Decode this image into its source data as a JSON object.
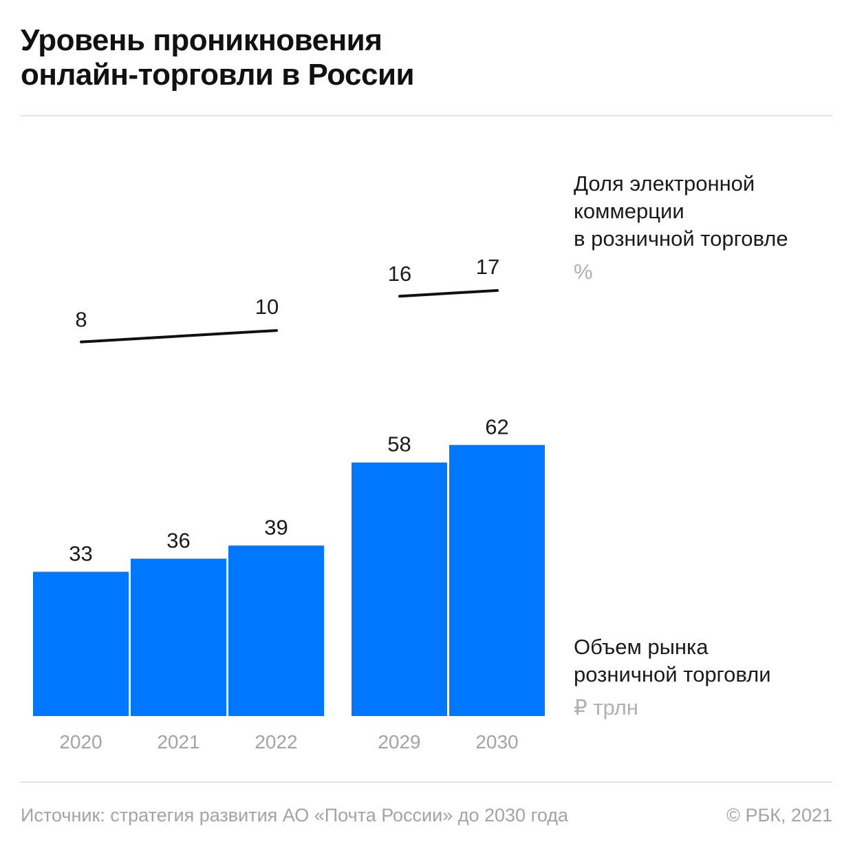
{
  "title": {
    "line1": "Уровень проникновения",
    "line2": "онлайн-торговли в России"
  },
  "legend": {
    "line_series": {
      "label_lines": [
        "Доля электронной",
        "коммерции",
        "в розничной торговле"
      ],
      "unit": "%"
    },
    "bar_series": {
      "label_lines": [
        "Объем рынка",
        "розничной торговли"
      ],
      "unit": "₽ трлн"
    }
  },
  "footer": {
    "source": "Источник: стратегия развития АО «Почта России» до 2030 года",
    "copyright": "© РБК, 2021"
  },
  "colors": {
    "bar": "#0077ff",
    "line": "#111111",
    "value_label": "#1a1a1a",
    "tick_label": "#a3a3a3",
    "rule": "#e2e2e2"
  },
  "chart_data": {
    "type": "bar",
    "title": "Уровень проникновения онлайн-торговли в России",
    "categories": [
      "2020",
      "2021",
      "2022",
      "2029",
      "2030"
    ],
    "groups": [
      [
        "2020",
        "2021",
        "2022"
      ],
      [
        "2029",
        "2030"
      ]
    ],
    "series": [
      {
        "name": "Объем рынка розничной торговли",
        "unit": "₽ трлн",
        "type": "bar",
        "values": [
          33,
          36,
          39,
          58,
          62
        ]
      },
      {
        "name": "Доля электронной коммерции в розничной торговле",
        "unit": "%",
        "type": "line",
        "segments": [
          {
            "categories": [
              "2020",
              "2022"
            ],
            "values": [
              8,
              10
            ]
          },
          {
            "categories": [
              "2029",
              "2030"
            ],
            "values": [
              16,
              17
            ]
          }
        ]
      }
    ],
    "xlabel": "",
    "ylabel": "",
    "grid": false,
    "legend_position": "right"
  }
}
